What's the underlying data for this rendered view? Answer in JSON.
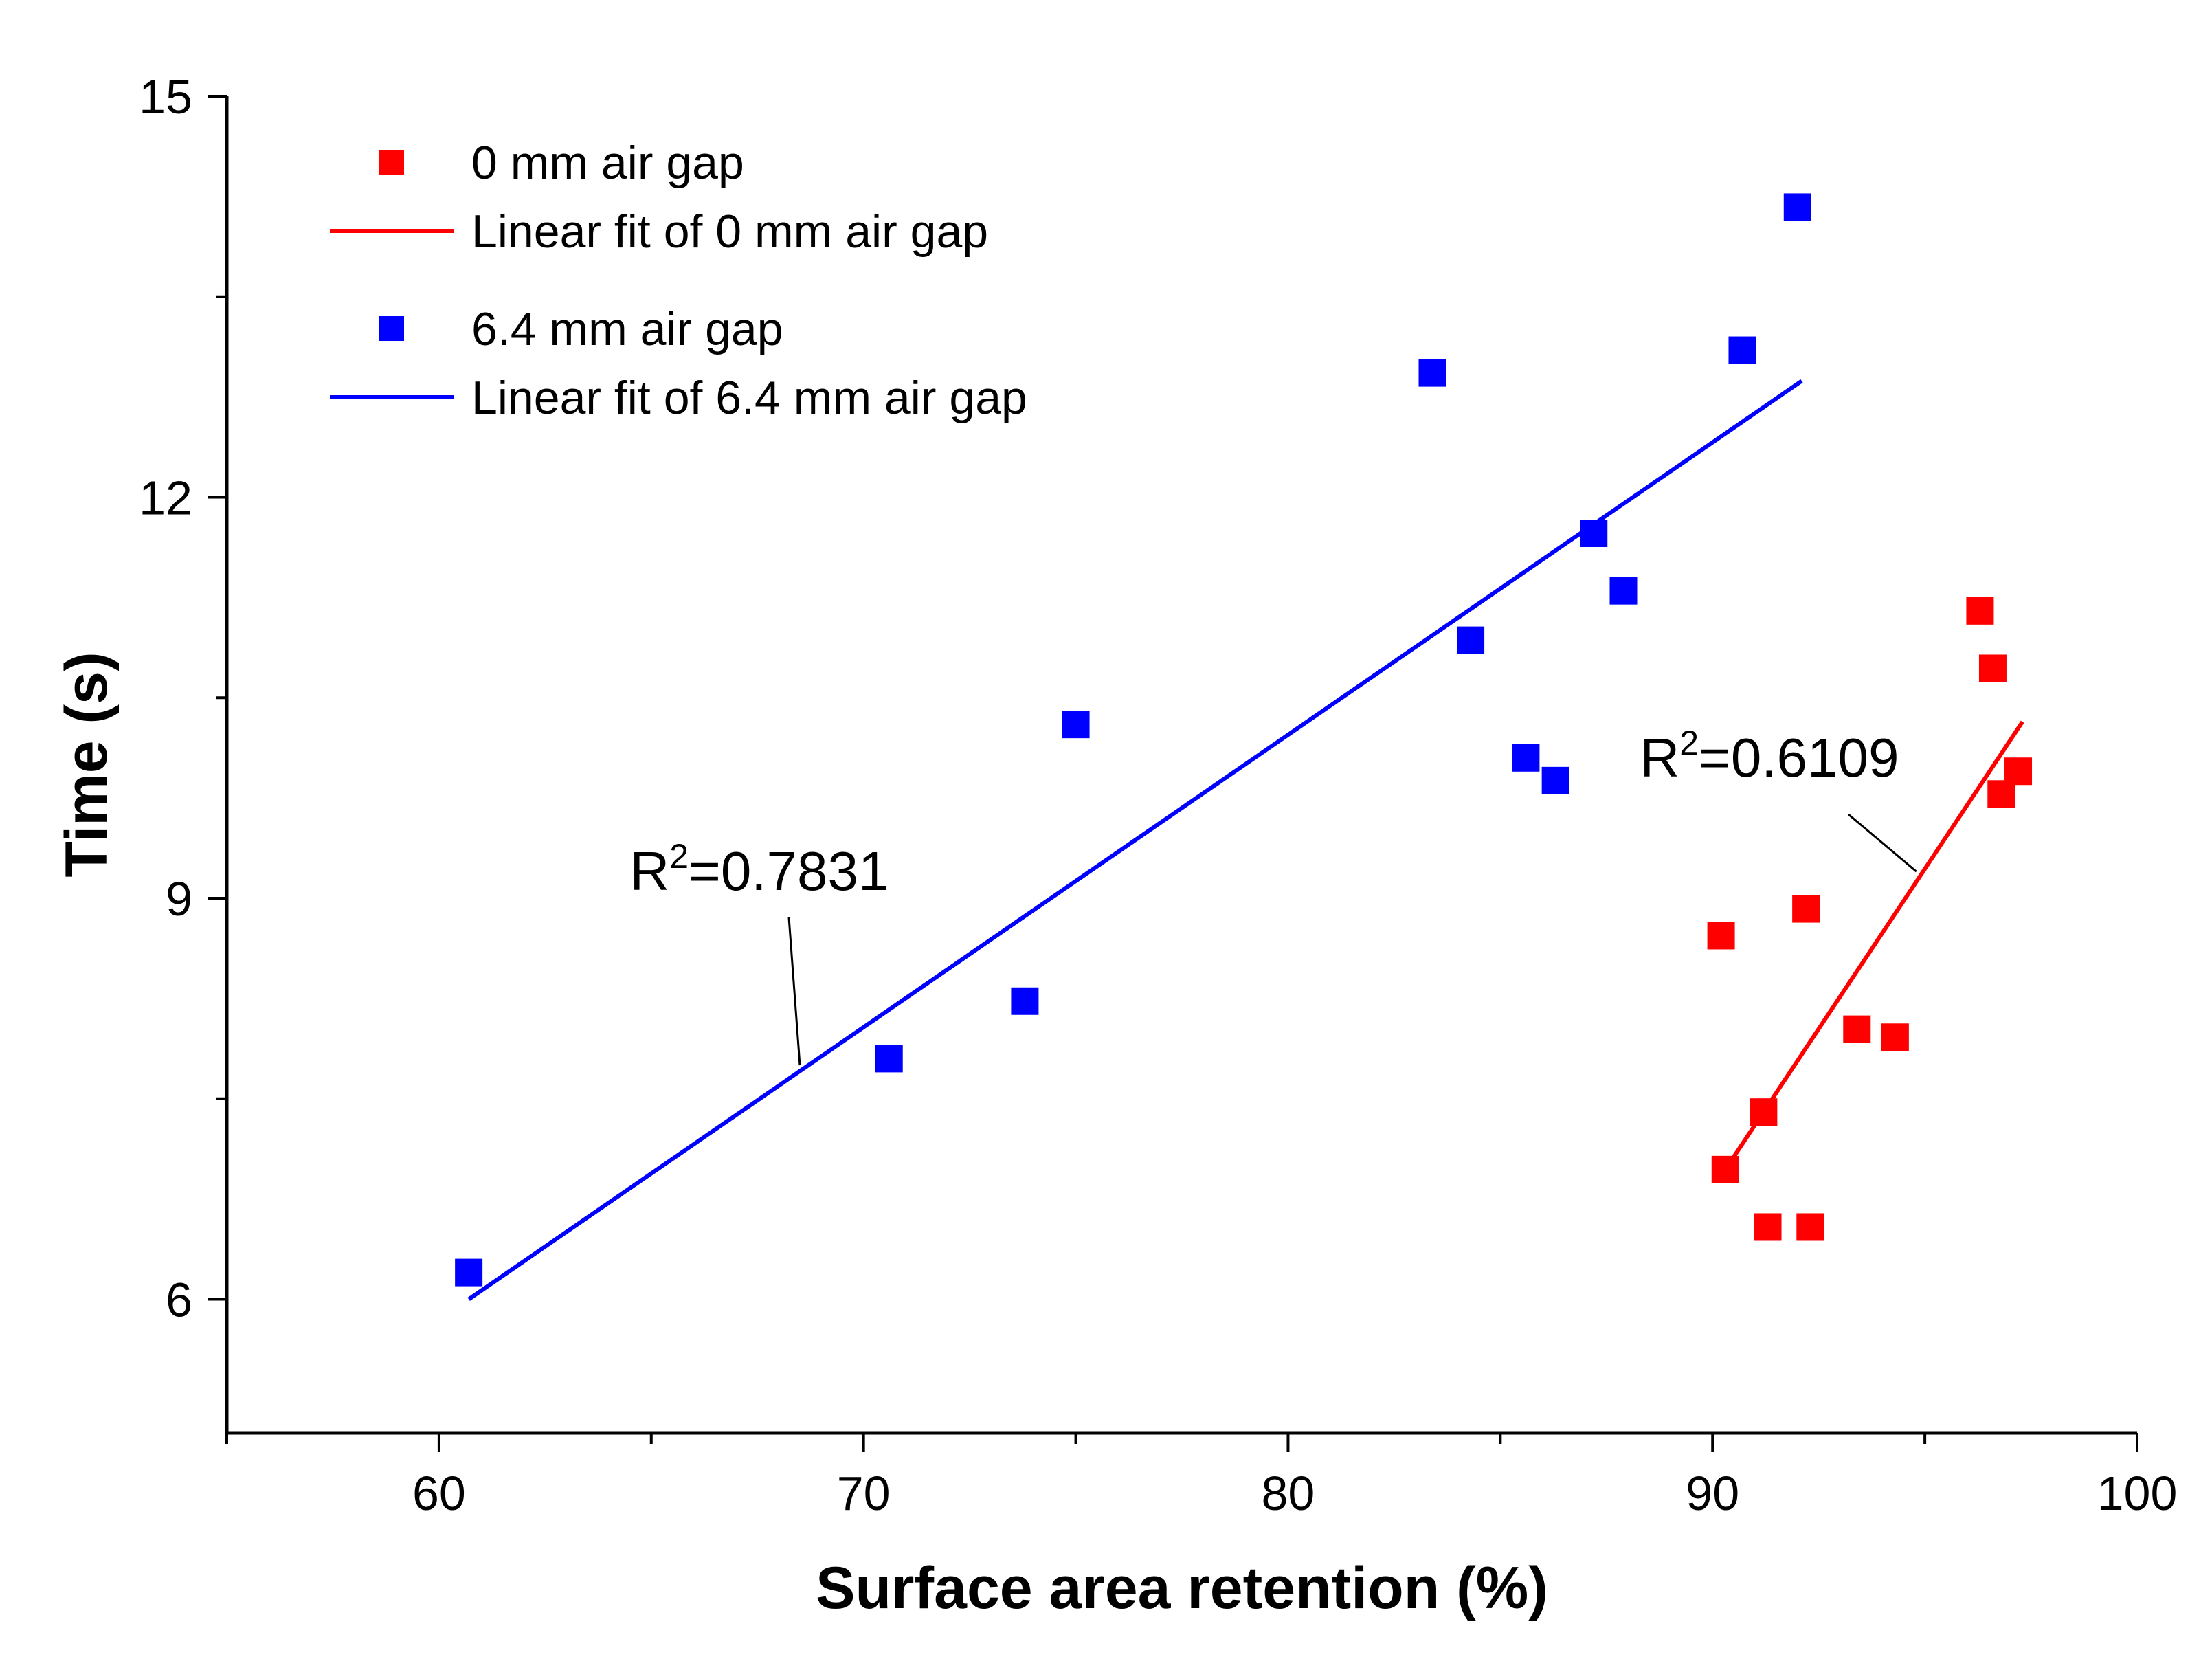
{
  "chart_data": {
    "type": "scatter",
    "title": "",
    "xlabel": "Surface area retention (%)",
    "ylabel": "Time (s)",
    "xlim": [
      55,
      100
    ],
    "ylim": [
      5,
      15
    ],
    "xticks": [
      60,
      70,
      80,
      90,
      100
    ],
    "xtick_labels": [
      "60",
      "70",
      "80",
      "90",
      "100"
    ],
    "yticks": [
      6,
      9,
      12,
      15
    ],
    "ytick_labels": [
      "6",
      "9",
      "12",
      "15"
    ],
    "grid": false,
    "legend_position": "top-left",
    "series": [
      {
        "name": "0 mm air gap",
        "color": "#ff0000",
        "marker": "square",
        "points": [
          {
            "x": 96.3,
            "y": 11.15
          },
          {
            "x": 96.6,
            "y": 10.72
          },
          {
            "x": 97.2,
            "y": 9.95
          },
          {
            "x": 96.8,
            "y": 9.78
          },
          {
            "x": 92.2,
            "y": 8.92
          },
          {
            "x": 90.2,
            "y": 8.72
          },
          {
            "x": 93.4,
            "y": 8.02
          },
          {
            "x": 94.3,
            "y": 7.96
          },
          {
            "x": 91.2,
            "y": 7.4
          },
          {
            "x": 90.3,
            "y": 6.97
          },
          {
            "x": 91.3,
            "y": 6.54
          },
          {
            "x": 92.3,
            "y": 6.54
          }
        ]
      },
      {
        "name": "6.4 mm air gap",
        "color": "#0000ff",
        "marker": "square",
        "points": [
          {
            "x": 92.0,
            "y": 14.17
          },
          {
            "x": 90.7,
            "y": 13.1
          },
          {
            "x": 83.4,
            "y": 12.93
          },
          {
            "x": 87.2,
            "y": 11.73
          },
          {
            "x": 87.9,
            "y": 11.3
          },
          {
            "x": 84.3,
            "y": 10.93
          },
          {
            "x": 75.0,
            "y": 10.3
          },
          {
            "x": 85.6,
            "y": 10.05
          },
          {
            "x": 86.3,
            "y": 9.88
          },
          {
            "x": 73.8,
            "y": 8.23
          },
          {
            "x": 70.6,
            "y": 7.8
          },
          {
            "x": 60.7,
            "y": 6.2
          }
        ]
      }
    ],
    "fits": [
      {
        "name": "Linear fit of 0 mm air gap",
        "color": "#ff0000",
        "x": [
          90.3,
          97.3
        ],
        "y": [
          6.97,
          10.32
        ]
      },
      {
        "name": "Linear fit of 6.4 mm air gap",
        "color": "#0000ff",
        "x": [
          60.7,
          92.1
        ],
        "y": [
          6.0,
          12.87
        ]
      }
    ],
    "legend": [
      {
        "label": "0 mm air gap",
        "kind": "marker",
        "color": "#ff0000"
      },
      {
        "label": "Linear fit of 0 mm air gap",
        "kind": "line",
        "color": "#ff0000"
      },
      {
        "label": "6.4 mm air gap",
        "kind": "marker",
        "color": "#0000ff"
      },
      {
        "label": "Linear fit of 6.4 mm air gap",
        "kind": "line",
        "color": "#0000ff"
      }
    ],
    "annotations": [
      {
        "prefix": "R",
        "sup": "2",
        "suffix": "=0.7831",
        "target": [
          68.5,
          7.75
        ],
        "anchor": [
          67.8,
          8.95
        ]
      },
      {
        "prefix": "R",
        "sup": "2",
        "suffix": "=0.6109",
        "target": [
          94.8,
          9.2
        ],
        "anchor": [
          93.1,
          9.66
        ]
      }
    ]
  }
}
